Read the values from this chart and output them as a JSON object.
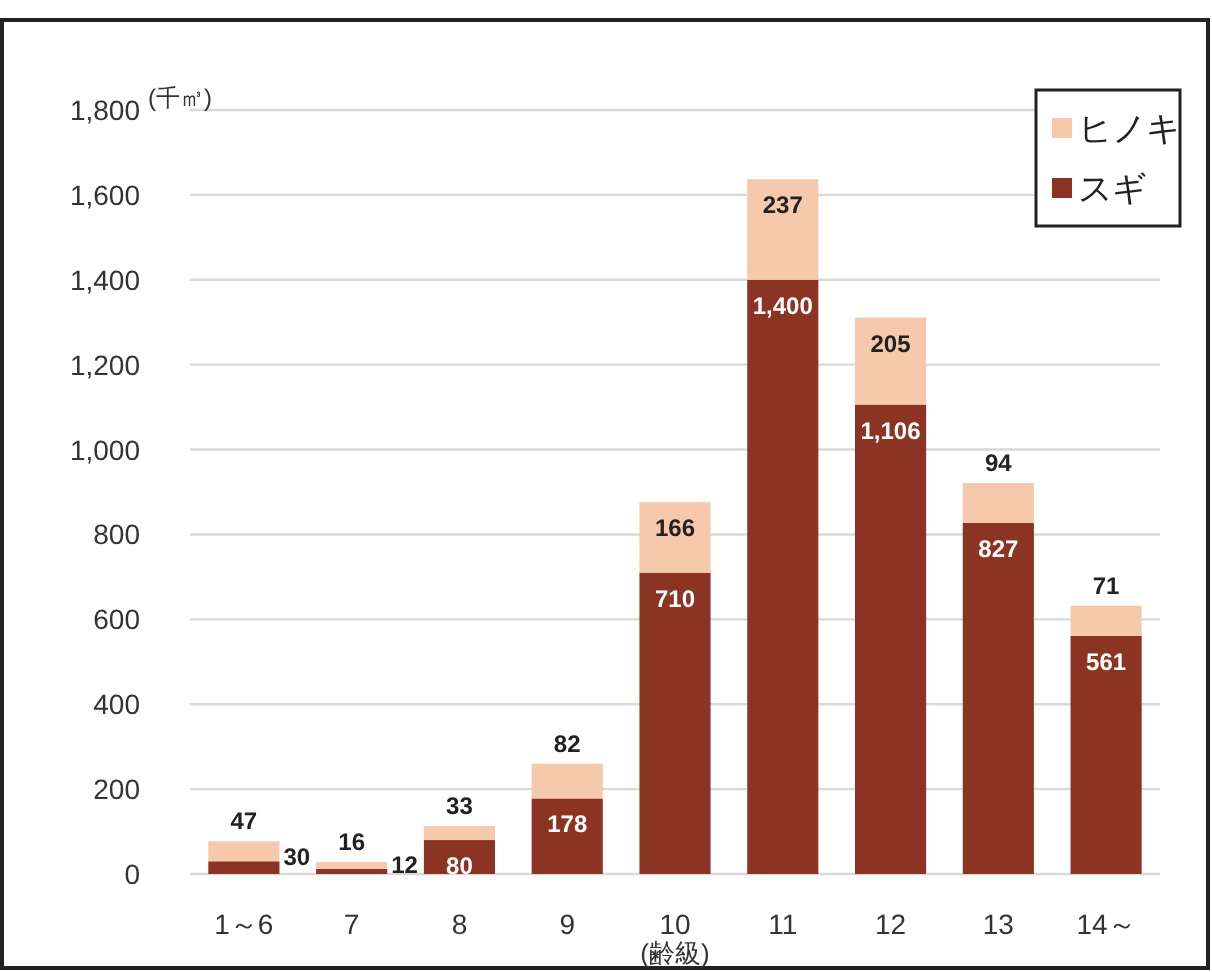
{
  "chart_data": {
    "type": "bar",
    "stacked": true,
    "ylabel": "(千㎥)",
    "xlabel": "(齢級)",
    "categories": [
      "1～6",
      "7",
      "8",
      "9",
      "10",
      "11",
      "12",
      "13",
      "14～"
    ],
    "series": [
      {
        "name": "スギ",
        "color": "#8b3424",
        "values": [
          30,
          12,
          80,
          178,
          710,
          1400,
          1106,
          827,
          561
        ],
        "value_labels": [
          "30",
          "12",
          "80",
          "178",
          "710",
          "1,400",
          "1,106",
          "827",
          "561"
        ]
      },
      {
        "name": "ヒノキ",
        "color": "#f6c9ad",
        "values": [
          47,
          16,
          33,
          82,
          166,
          237,
          205,
          94,
          71
        ],
        "value_labels": [
          "47",
          "16",
          "33",
          "82",
          "166",
          "237",
          "205",
          "94",
          "71"
        ]
      }
    ],
    "ylim": [
      0,
      1800
    ],
    "yticks": [
      {
        "value": 0,
        "label": "0"
      },
      {
        "value": 200,
        "label": "200"
      },
      {
        "value": 400,
        "label": "400"
      },
      {
        "value": 600,
        "label": "600"
      },
      {
        "value": 800,
        "label": "800"
      },
      {
        "value": 1000,
        "label": "1,000"
      },
      {
        "value": 1200,
        "label": "1,200"
      },
      {
        "value": 1400,
        "label": "1,400"
      },
      {
        "value": 1600,
        "label": "1,600"
      },
      {
        "value": 1800,
        "label": "1,800"
      }
    ],
    "grid": "y",
    "legend": "top right"
  }
}
